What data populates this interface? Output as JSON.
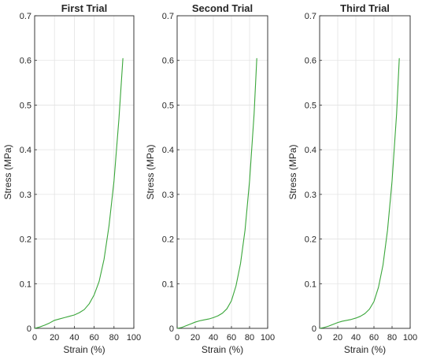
{
  "chart_data": [
    {
      "type": "line",
      "title": "First Trial",
      "xlabel": "Strain (%)",
      "ylabel": "Stress (MPa)",
      "xlim": [
        0,
        100
      ],
      "ylim": [
        0,
        0.7
      ],
      "xticks": [
        "0",
        "20",
        "40",
        "60",
        "80",
        "100"
      ],
      "yticks": [
        "0",
        "0.1",
        "0.2",
        "0.3",
        "0.4",
        "0.5",
        "0.6",
        "0.7"
      ],
      "grid": true,
      "line_color": "#3aa63a",
      "series": [
        {
          "x": [
            0,
            5,
            10,
            15,
            20,
            25,
            30,
            35,
            40,
            45,
            50,
            55,
            60,
            65,
            70,
            75,
            80,
            85,
            89
          ],
          "y": [
            0,
            0.003,
            0.007,
            0.012,
            0.018,
            0.021,
            0.024,
            0.027,
            0.03,
            0.035,
            0.042,
            0.055,
            0.075,
            0.105,
            0.155,
            0.23,
            0.33,
            0.47,
            0.605
          ]
        }
      ]
    },
    {
      "type": "line",
      "title": "Second Trial",
      "xlabel": "Strain (%)",
      "ylabel": "Stress (MPa)",
      "xlim": [
        0,
        100
      ],
      "ylim": [
        0,
        0.7
      ],
      "xticks": [
        "0",
        "20",
        "40",
        "60",
        "80",
        "100"
      ],
      "yticks": [
        "0",
        "0.1",
        "0.2",
        "0.3",
        "0.4",
        "0.5",
        "0.6",
        "0.7"
      ],
      "grid": true,
      "line_color": "#3aa63a",
      "series": [
        {
          "x": [
            0,
            5,
            10,
            15,
            20,
            25,
            30,
            35,
            40,
            45,
            50,
            55,
            60,
            65,
            70,
            75,
            80,
            85,
            88
          ],
          "y": [
            0,
            0.002,
            0.006,
            0.01,
            0.014,
            0.017,
            0.019,
            0.021,
            0.024,
            0.028,
            0.034,
            0.044,
            0.062,
            0.095,
            0.145,
            0.22,
            0.33,
            0.48,
            0.605
          ]
        }
      ]
    },
    {
      "type": "line",
      "title": "Third Trial",
      "xlabel": "Strain (%)",
      "ylabel": "Stress (MPa)",
      "xlim": [
        0,
        100
      ],
      "ylim": [
        0,
        0.7
      ],
      "xticks": [
        "0",
        "20",
        "40",
        "60",
        "80",
        "100"
      ],
      "yticks": [
        "0",
        "0.1",
        "0.2",
        "0.3",
        "0.4",
        "0.5",
        "0.6",
        "0.7"
      ],
      "grid": true,
      "line_color": "#3aa63a",
      "series": [
        {
          "x": [
            0,
            5,
            10,
            15,
            20,
            25,
            30,
            35,
            40,
            45,
            50,
            55,
            60,
            65,
            70,
            75,
            80,
            85,
            88
          ],
          "y": [
            0,
            0.002,
            0.005,
            0.009,
            0.013,
            0.016,
            0.018,
            0.02,
            0.023,
            0.027,
            0.033,
            0.043,
            0.06,
            0.092,
            0.142,
            0.22,
            0.33,
            0.48,
            0.605
          ]
        }
      ]
    }
  ]
}
